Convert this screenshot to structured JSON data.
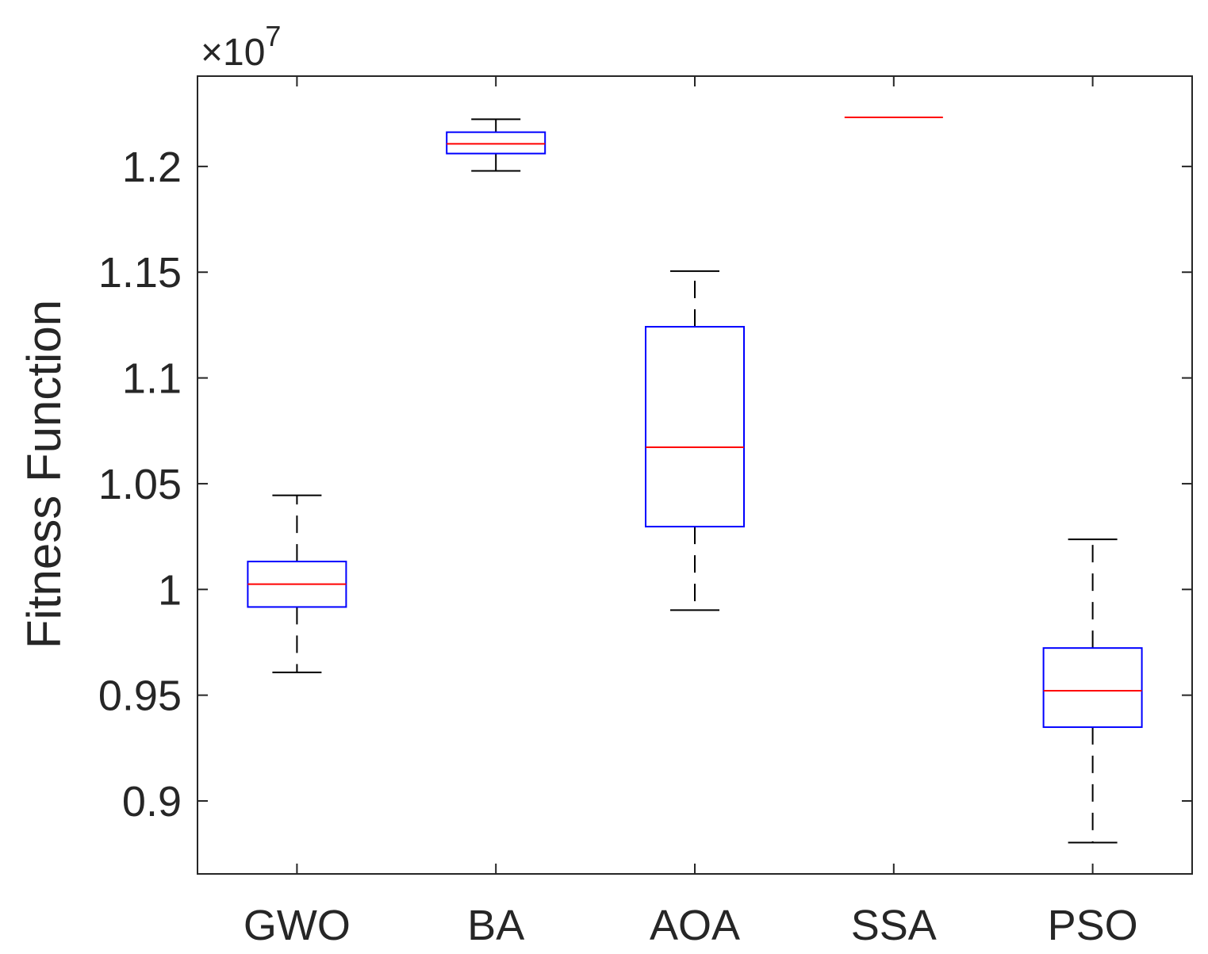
{
  "chart_data": {
    "type": "boxplot",
    "title": "",
    "xlabel": "",
    "ylabel": "Fitness Function",
    "y_exponent": {
      "base": "×10",
      "power": "7"
    },
    "ylim": [
      0.8655,
      1.2427
    ],
    "yticks": [
      0.9,
      0.95,
      1.0,
      1.05,
      1.1,
      1.15,
      1.2
    ],
    "ytick_labels": [
      "0.9",
      "0.95",
      "1",
      "1.05",
      "1.1",
      "1.15",
      "1.2"
    ],
    "categories": [
      "GWO",
      "BA",
      "AOA",
      "SSA",
      "PSO"
    ],
    "series": [
      {
        "name": "GWO",
        "whisker_low": 0.9608,
        "q1": 0.9917,
        "median": 1.0025,
        "q3": 1.0132,
        "whisker_high": 1.0445
      },
      {
        "name": "BA",
        "whisker_low": 1.1979,
        "q1": 1.2061,
        "median": 1.2107,
        "q3": 1.2162,
        "whisker_high": 1.2223
      },
      {
        "name": "AOA",
        "whisker_low": 0.9902,
        "q1": 1.0297,
        "median": 1.0672,
        "q3": 1.1242,
        "whisker_high": 1.1505
      },
      {
        "name": "SSA",
        "whisker_low": 1.2232,
        "q1": 1.2232,
        "median": 1.2232,
        "q3": 1.2232,
        "whisker_high": 1.2232
      },
      {
        "name": "PSO",
        "whisker_low": 0.8803,
        "q1": 0.9349,
        "median": 0.9521,
        "q3": 0.9723,
        "whisker_high": 1.0237
      }
    ],
    "colors": {
      "box": "#0000ff",
      "median": "#ff0000",
      "whisker": "#000000",
      "axis": "#262626"
    },
    "grid": false,
    "legend": "none"
  }
}
